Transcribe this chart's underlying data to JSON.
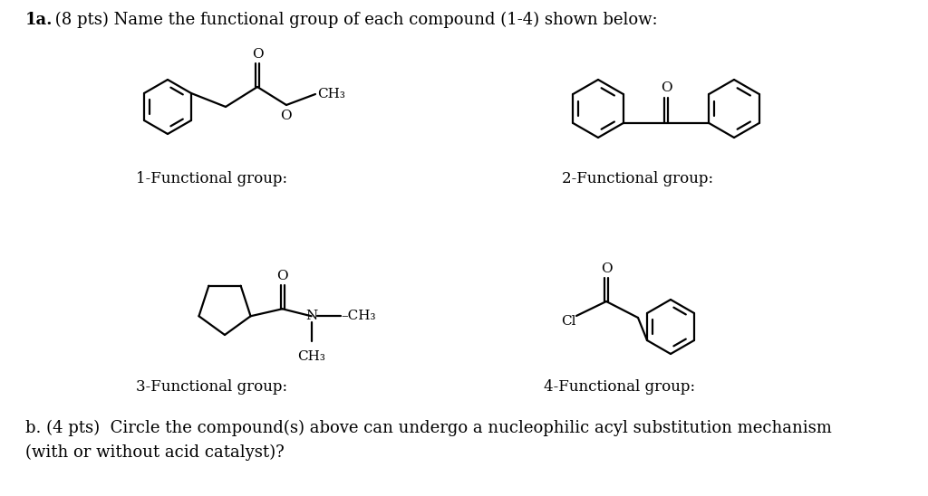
{
  "bg_color": "#ffffff",
  "fig_width": 10.24,
  "fig_height": 5.48,
  "lw": 1.6,
  "font_size_title": 13,
  "font_size_label": 12,
  "font_size_atom": 11,
  "title_bold": "1a.",
  "title_rest": " (8 pts) Name the functional group of each compound (1-4) shown below:",
  "label1": "1-Functional group:",
  "label2": "2-Functional group:",
  "label3": "3-Functional group:",
  "label4": "4-Functional group:",
  "bottom1": "b. (4 pts)  Circle the compound(s) above can undergo a nucleophilic acyl substitution mechanism",
  "bottom2": "(with or without acid catalyst)?"
}
